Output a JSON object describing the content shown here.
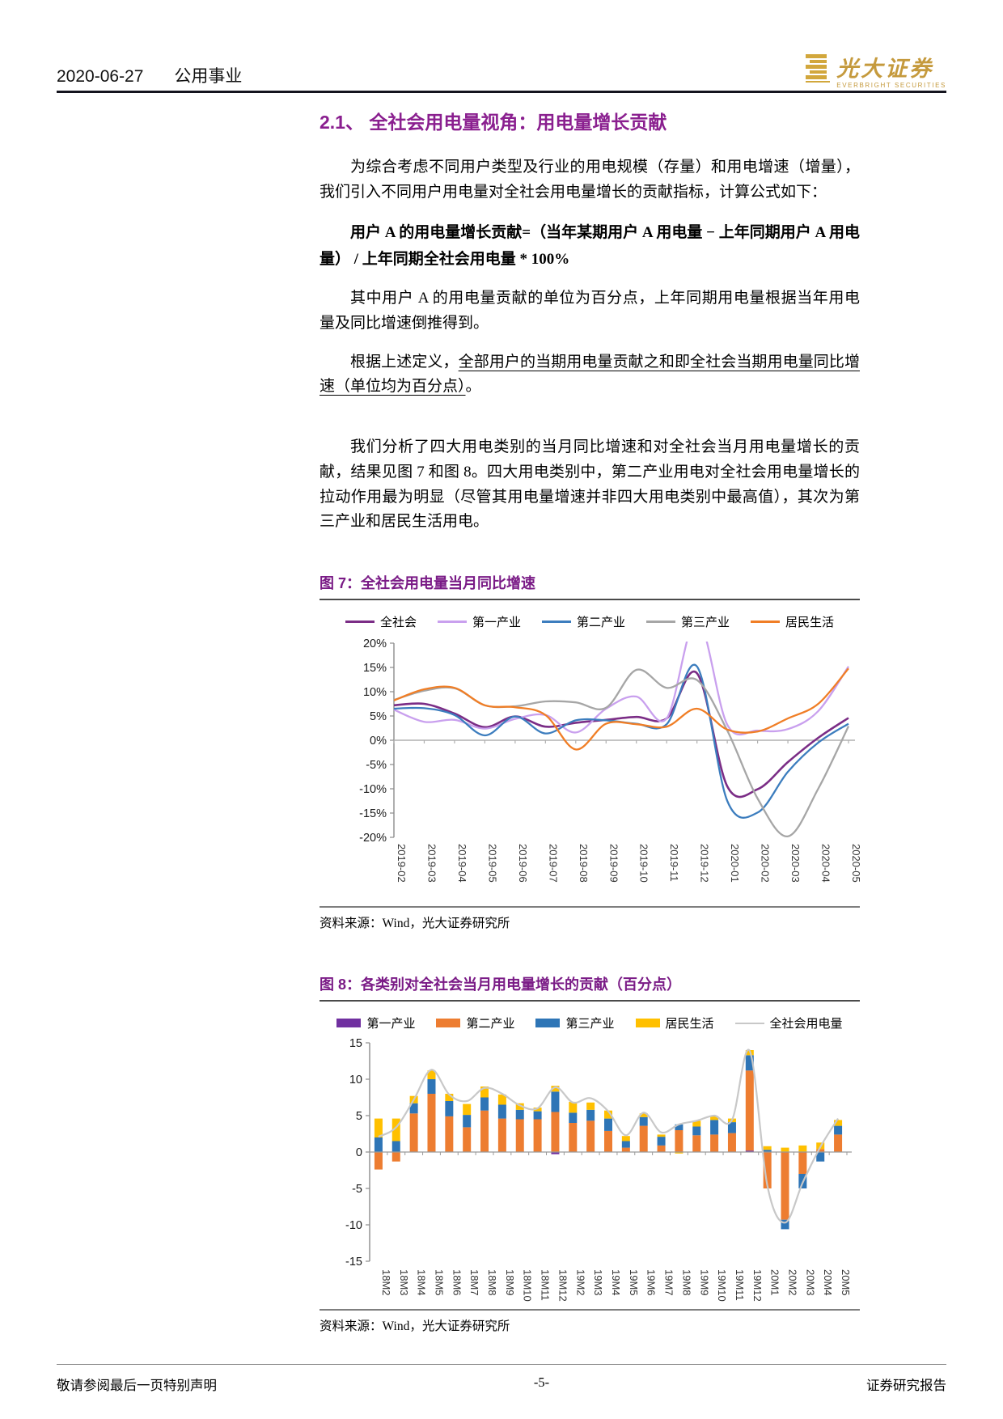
{
  "page": {
    "header": {
      "date": "2020-06-27",
      "category": "公用事业",
      "brand_name": "光大证券",
      "brand_subtitle": "EVERBRIGHT SECURITIES"
    },
    "section": {
      "title": "2.1、 全社会用电量视角：用电量增长贡献"
    },
    "paragraphs": {
      "intro": "为综合考虑不同用户类型及行业的用电规模（存量）和用电增速（增量），我们引入不同用户用电量对全社会用电量增长的贡献指标，计算公式如下：",
      "formula": "用户 A 的用电量增长贡献=（当年某期用户 A 用电量 − 上年同期用户 A 用电量） / 上年同期全社会用电量 * 100%",
      "unit_note": "其中用户 A 的用电量贡献的单位为百分点，上年同期用电量根据当年用电量及同比增速倒推得到。",
      "definition_prefix": "根据上述定义，",
      "definition_underlined": "全部用户的当期用电量贡献之和即全社会当期用电量同比增速（单位均为百分点）",
      "definition_suffix": "。",
      "analysis": "我们分析了四大用电类别的当月同比增速和对全社会当月用电量增长的贡献，结果见图 7 和图 8。四大用电类别中，第二产业用电对全社会用电量增长的拉动作用最为明显（尽管其用电量增速并非四大用电类别中最高值），其次为第三产业和居民生活用电。"
    },
    "figure7": {
      "title": "图 7：全社会用电量当月同比增速",
      "source": "资料来源：Wind，光大证券研究所"
    },
    "figure8": {
      "title": "图 8：各类别对全社会当月用电量增长的贡献（百分点）",
      "source": "资料来源：Wind，光大证券研究所"
    },
    "footer": {
      "left": "敬请参阅最后一页特别声明",
      "center": "-5-",
      "right": "证券研究报告"
    }
  },
  "chart_data": [
    {
      "type": "line",
      "title": "全社会用电量当月同比增速",
      "legend_position": "top",
      "grid": false,
      "ylim": [
        -20,
        20
      ],
      "y_ticks": [
        "20%",
        "15%",
        "10%",
        "5%",
        "0%",
        "-5%",
        "-10%",
        "-15%",
        "-20%"
      ],
      "categories": [
        "2019-02",
        "2019-03",
        "2019-04",
        "2019-05",
        "2019-06",
        "2019-07",
        "2019-08",
        "2019-09",
        "2019-10",
        "2019-11",
        "2019-12",
        "2020-01",
        "2020-02",
        "2020-03",
        "2020-04",
        "2020-05"
      ],
      "series": [
        {
          "name": "全社会",
          "color": "#7b2d86",
          "values": [
            7.2,
            7.5,
            5.5,
            2.7,
            4.9,
            2.8,
            3.6,
            4.2,
            4.8,
            4.5,
            13.8,
            -9.5,
            -10.1,
            -4.5,
            0.5,
            4.6
          ]
        },
        {
          "name": "第一产业",
          "color": "#c9a0ee",
          "values": [
            6.3,
            3.8,
            4.2,
            2.4,
            4.4,
            5.2,
            1.6,
            6.5,
            9.0,
            4.5,
            25.0,
            3.2,
            2.0,
            2.3,
            6.0,
            15.2
          ]
        },
        {
          "name": "第二产业",
          "color": "#3c7dbe",
          "values": [
            6.5,
            6.6,
            5.2,
            1.0,
            4.9,
            1.4,
            4.1,
            4.1,
            3.4,
            3.3,
            15.2,
            -12.5,
            -14.9,
            -6.5,
            -0.5,
            3.4
          ]
        },
        {
          "name": "第三产业",
          "color": "#a6a6a6",
          "values": [
            8.3,
            10.2,
            10.7,
            7.2,
            7.0,
            8.0,
            7.8,
            6.7,
            14.5,
            10.8,
            12.4,
            2.0,
            -12.0,
            -19.8,
            -10.0,
            2.9
          ]
        },
        {
          "name": "居民生活",
          "color": "#f07e26",
          "values": [
            8.2,
            10.5,
            10.8,
            7.2,
            6.8,
            5.2,
            -1.9,
            3.4,
            3.3,
            2.8,
            6.5,
            2.2,
            1.8,
            4.5,
            7.5,
            14.8
          ]
        }
      ]
    },
    {
      "type": "bar",
      "title": "各类别对全社会当月用电量增长的贡献（百分点）",
      "subtype": "stacked-with-line",
      "legend_position": "top",
      "grid": false,
      "ylim": [
        -15,
        15
      ],
      "y_ticks": [
        "15",
        "10",
        "5",
        "0",
        "-5",
        "-10",
        "-15"
      ],
      "categories": [
        "18M2",
        "18M3",
        "18M4",
        "18M5",
        "18M6",
        "18M7",
        "18M8",
        "18M9",
        "18M10",
        "18M11",
        "18M12",
        "19M2",
        "19M3",
        "19M4",
        "19M5",
        "19M6",
        "19M7",
        "19M8",
        "19M9",
        "19M10",
        "19M11",
        "19M12",
        "20M1",
        "20M2",
        "20M3",
        "20M4",
        "20M5"
      ],
      "series": [
        {
          "name": "第一产业",
          "type": "bar",
          "color": "#7030a0",
          "values": [
            0,
            0,
            0,
            0,
            0,
            0,
            0,
            0,
            0,
            0,
            -0.3,
            0,
            0,
            0,
            0,
            0,
            0,
            0,
            0,
            0,
            0,
            0.2,
            0,
            0,
            0,
            0,
            0
          ]
        },
        {
          "name": "第二产业",
          "type": "bar",
          "color": "#ed7d31",
          "values": [
            -2.4,
            -1.3,
            5.3,
            8.0,
            4.9,
            3.4,
            5.7,
            4.6,
            4.5,
            4.5,
            5.5,
            4.0,
            4.3,
            2.9,
            0.6,
            3.6,
            0.9,
            3.0,
            2.3,
            2.4,
            2.6,
            11.0,
            -5.0,
            -9.3,
            -3.0,
            0.4,
            2.4
          ]
        },
        {
          "name": "第三产业",
          "type": "bar",
          "color": "#2e75b6",
          "values": [
            2.0,
            1.5,
            1.4,
            2.0,
            2.1,
            1.7,
            1.8,
            1.9,
            1.3,
            1.1,
            2.8,
            1.4,
            1.5,
            1.7,
            0.9,
            1.2,
            1.2,
            0.8,
            1.2,
            2.0,
            1.5,
            2.1,
            0.3,
            -1.3,
            -2.0,
            -1.3,
            1.2
          ]
        },
        {
          "name": "居民生活",
          "type": "bar",
          "color": "#ffc000",
          "values": [
            2.6,
            3.1,
            1.0,
            1.2,
            1.0,
            1.5,
            1.5,
            1.4,
            0.9,
            0.5,
            0.8,
            1.5,
            1.0,
            1.1,
            0.7,
            0.5,
            0.3,
            -0.2,
            0.8,
            0.5,
            0.5,
            0.7,
            0.5,
            0.6,
            0.9,
            0.9,
            0.8
          ]
        },
        {
          "name": "全社会用电量",
          "type": "line",
          "color": "#c8c8c8",
          "values": [
            2.1,
            3.4,
            7.2,
            11.3,
            7.9,
            7.0,
            8.8,
            8.0,
            6.4,
            6.0,
            8.9,
            6.8,
            7.4,
            5.6,
            2.3,
            5.4,
            2.7,
            3.8,
            4.3,
            5.0,
            4.4,
            13.9,
            -4.6,
            -9.7,
            -4.2,
            0.7,
            4.6
          ]
        }
      ]
    }
  ]
}
